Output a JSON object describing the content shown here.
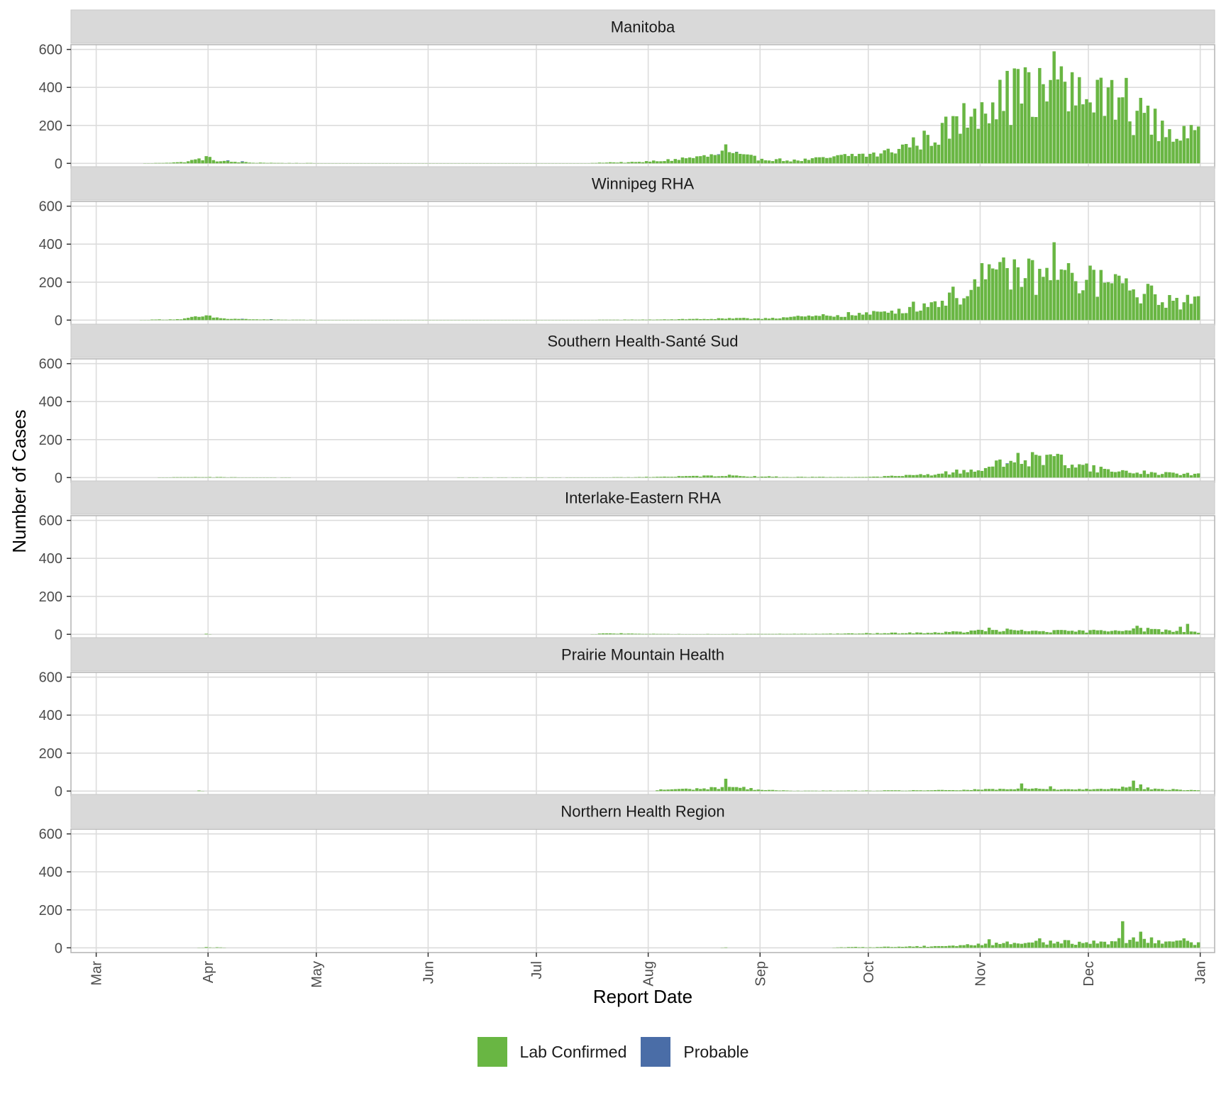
{
  "chart_data": {
    "type": "bar",
    "stacked": true,
    "facet_layout": "vertical",
    "x_axis": {
      "label": "Report Date",
      "ticks": [
        "Mar",
        "Apr",
        "May",
        "Jun",
        "Jul",
        "Aug",
        "Sep",
        "Oct",
        "Nov",
        "Dec",
        "Jan"
      ],
      "range": [
        "2020-02-23",
        "2021-01-05"
      ]
    },
    "y_axis": {
      "label": "Number of Cases",
      "ticks": [
        0,
        200,
        400,
        600
      ],
      "ylim": [
        -25,
        625
      ]
    },
    "grid": true,
    "legend": {
      "position": "bottom",
      "entries": [
        {
          "name": "Lab Confirmed",
          "color": "#69b643"
        },
        {
          "name": "Probable",
          "color": "#4a6da7"
        }
      ]
    },
    "series_names": [
      "Lab Confirmed",
      "Probable"
    ],
    "start_date": "2020-03-01",
    "panels": [
      {
        "title": "Manitoba",
        "anchors": [
          [
            "2020-03-12",
            0
          ],
          [
            "2020-03-17",
            2
          ],
          [
            "2020-03-24",
            6
          ],
          [
            "2020-03-27",
            15
          ],
          [
            "2020-03-31",
            30
          ],
          [
            "2020-04-04",
            12
          ],
          [
            "2020-04-12",
            4
          ],
          [
            "2020-04-20",
            2
          ],
          [
            "2020-05-01",
            1
          ],
          [
            "2020-06-15",
            1
          ],
          [
            "2020-07-15",
            1
          ],
          [
            "2020-07-20",
            5
          ],
          [
            "2020-07-28",
            6
          ],
          [
            "2020-08-05",
            15
          ],
          [
            "2020-08-12",
            30
          ],
          [
            "2020-08-18",
            40
          ],
          [
            "2020-08-22",
            60
          ],
          [
            "2020-08-26",
            40
          ],
          [
            "2020-09-01",
            25
          ],
          [
            "2020-09-10",
            15
          ],
          [
            "2020-09-20",
            30
          ],
          [
            "2020-09-26",
            45
          ],
          [
            "2020-10-04",
            50
          ],
          [
            "2020-10-10",
            90
          ],
          [
            "2020-10-18",
            140
          ],
          [
            "2020-10-26",
            220
          ],
          [
            "2020-11-01",
            350
          ],
          [
            "2020-11-08",
            360
          ],
          [
            "2020-11-15",
            380
          ],
          [
            "2020-11-22",
            390
          ],
          [
            "2020-11-28",
            340
          ],
          [
            "2020-12-05",
            340
          ],
          [
            "2020-12-12",
            280
          ],
          [
            "2020-12-19",
            210
          ],
          [
            "2020-12-24",
            160
          ],
          [
            "2020-12-31",
            140
          ]
        ],
        "spikes": [
          [
            "2020-08-22",
            100
          ],
          [
            "2020-11-06",
            440
          ],
          [
            "2020-11-10",
            500
          ],
          [
            "2020-11-14",
            480
          ],
          [
            "2020-11-21",
            590
          ],
          [
            "2020-11-24",
            430
          ],
          [
            "2020-11-26",
            480
          ],
          [
            "2020-12-03",
            440
          ],
          [
            "2020-12-06",
            400
          ],
          [
            "2020-12-11",
            450
          ],
          [
            "2020-12-15",
            345
          ],
          [
            "2020-12-30",
            175
          ]
        ],
        "probable": [
          [
            "2020-04-06",
            3
          ],
          [
            "2020-04-10",
            4
          ],
          [
            "2020-08-20",
            3
          ],
          [
            "2020-08-25",
            2
          ]
        ]
      },
      {
        "title": "Winnipeg RHA",
        "anchors": [
          [
            "2020-03-12",
            0
          ],
          [
            "2020-03-17",
            3
          ],
          [
            "2020-03-24",
            5
          ],
          [
            "2020-03-28",
            15
          ],
          [
            "2020-03-31",
            20
          ],
          [
            "2020-04-05",
            8
          ],
          [
            "2020-04-15",
            3
          ],
          [
            "2020-05-01",
            1
          ],
          [
            "2020-06-01",
            1
          ],
          [
            "2020-07-01",
            1
          ],
          [
            "2020-07-15",
            1
          ],
          [
            "2020-08-01",
            3
          ],
          [
            "2020-08-15",
            6
          ],
          [
            "2020-09-01",
            10
          ],
          [
            "2020-09-15",
            20
          ],
          [
            "2020-09-25",
            30
          ],
          [
            "2020-10-02",
            35
          ],
          [
            "2020-10-10",
            60
          ],
          [
            "2020-10-18",
            90
          ],
          [
            "2020-10-26",
            140
          ],
          [
            "2020-11-01",
            200
          ],
          [
            "2020-11-08",
            240
          ],
          [
            "2020-11-15",
            240
          ],
          [
            "2020-11-22",
            220
          ],
          [
            "2020-11-28",
            210
          ],
          [
            "2020-12-05",
            210
          ],
          [
            "2020-12-12",
            160
          ],
          [
            "2020-12-19",
            130
          ],
          [
            "2020-12-24",
            100
          ],
          [
            "2020-12-31",
            95
          ]
        ],
        "spikes": [
          [
            "2020-11-01",
            300
          ],
          [
            "2020-11-07",
            330
          ],
          [
            "2020-11-10",
            320
          ],
          [
            "2020-11-21",
            410
          ],
          [
            "2020-11-25",
            300
          ],
          [
            "2020-12-02",
            265
          ],
          [
            "2020-12-11",
            220
          ]
        ],
        "probable": [
          [
            "2020-04-10",
            2
          ],
          [
            "2020-04-18",
            2
          ]
        ]
      },
      {
        "title": "Southern Health-Santé Sud",
        "anchors": [
          [
            "2020-03-15",
            0
          ],
          [
            "2020-03-31",
            3
          ],
          [
            "2020-04-10",
            1
          ],
          [
            "2020-05-01",
            0
          ],
          [
            "2020-07-20",
            1
          ],
          [
            "2020-08-01",
            3
          ],
          [
            "2020-08-15",
            8
          ],
          [
            "2020-08-22",
            12
          ],
          [
            "2020-08-30",
            6
          ],
          [
            "2020-09-10",
            3
          ],
          [
            "2020-10-01",
            3
          ],
          [
            "2020-10-10",
            10
          ],
          [
            "2020-10-20",
            20
          ],
          [
            "2020-10-27",
            35
          ],
          [
            "2020-11-01",
            50
          ],
          [
            "2020-11-08",
            80
          ],
          [
            "2020-11-15",
            100
          ],
          [
            "2020-11-22",
            100
          ],
          [
            "2020-11-28",
            70
          ],
          [
            "2020-12-05",
            40
          ],
          [
            "2020-12-12",
            30
          ],
          [
            "2020-12-20",
            25
          ],
          [
            "2020-12-31",
            18
          ]
        ],
        "spikes": [
          [
            "2020-11-11",
            130
          ],
          [
            "2020-11-19",
            120
          ],
          [
            "2020-11-22",
            125
          ]
        ],
        "probable": [
          [
            "2020-11-08",
            3
          ]
        ]
      },
      {
        "title": "Interlake-Eastern RHA",
        "anchors": [
          [
            "2020-03-30",
            0
          ],
          [
            "2020-03-31",
            2
          ],
          [
            "2020-04-02",
            0
          ],
          [
            "2020-07-15",
            0
          ],
          [
            "2020-07-19",
            4
          ],
          [
            "2020-07-25",
            5
          ],
          [
            "2020-08-01",
            2
          ],
          [
            "2020-08-20",
            1
          ],
          [
            "2020-09-05",
            2
          ],
          [
            "2020-09-20",
            3
          ],
          [
            "2020-10-01",
            5
          ],
          [
            "2020-10-15",
            8
          ],
          [
            "2020-10-25",
            12
          ],
          [
            "2020-11-01",
            20
          ],
          [
            "2020-11-15",
            18
          ],
          [
            "2020-11-28",
            16
          ],
          [
            "2020-12-05",
            20
          ],
          [
            "2020-12-12",
            30
          ],
          [
            "2020-12-20",
            22
          ],
          [
            "2020-12-31",
            12
          ]
        ],
        "spikes": [
          [
            "2020-11-03",
            35
          ],
          [
            "2020-11-08",
            30
          ],
          [
            "2020-12-14",
            45
          ],
          [
            "2020-12-28",
            55
          ],
          [
            "2020-12-26",
            40
          ]
        ],
        "probable": []
      },
      {
        "title": "Prairie Mountain Health",
        "anchors": [
          [
            "2020-03-28",
            0
          ],
          [
            "2020-03-29",
            2
          ],
          [
            "2020-03-31",
            0
          ],
          [
            "2020-08-02",
            0
          ],
          [
            "2020-08-04",
            8
          ],
          [
            "2020-08-10",
            10
          ],
          [
            "2020-08-18",
            15
          ],
          [
            "2020-08-22",
            25
          ],
          [
            "2020-08-28",
            15
          ],
          [
            "2020-09-02",
            5
          ],
          [
            "2020-09-10",
            2
          ],
          [
            "2020-10-01",
            2
          ],
          [
            "2020-10-15",
            4
          ],
          [
            "2020-10-25",
            5
          ],
          [
            "2020-11-01",
            8
          ],
          [
            "2020-11-15",
            12
          ],
          [
            "2020-11-28",
            10
          ],
          [
            "2020-12-05",
            15
          ],
          [
            "2020-12-12",
            20
          ],
          [
            "2020-12-20",
            10
          ],
          [
            "2020-12-31",
            4
          ]
        ],
        "spikes": [
          [
            "2020-08-22",
            65
          ],
          [
            "2020-11-12",
            40
          ],
          [
            "2020-11-20",
            25
          ],
          [
            "2020-12-13",
            55
          ],
          [
            "2020-12-15",
            35
          ]
        ],
        "probable": []
      },
      {
        "title": "Northern Health Region",
        "anchors": [
          [
            "2020-03-28",
            0
          ],
          [
            "2020-03-31",
            3
          ],
          [
            "2020-04-04",
            2
          ],
          [
            "2020-04-06",
            0
          ],
          [
            "2020-08-20",
            0
          ],
          [
            "2020-08-22",
            2
          ],
          [
            "2020-08-23",
            0
          ],
          [
            "2020-09-20",
            0
          ],
          [
            "2020-09-25",
            4
          ],
          [
            "2020-10-01",
            3
          ],
          [
            "2020-10-15",
            8
          ],
          [
            "2020-10-25",
            12
          ],
          [
            "2020-11-01",
            20
          ],
          [
            "2020-11-08",
            25
          ],
          [
            "2020-11-15",
            30
          ],
          [
            "2020-11-22",
            30
          ],
          [
            "2020-11-28",
            28
          ],
          [
            "2020-12-05",
            30
          ],
          [
            "2020-12-10",
            40
          ],
          [
            "2020-12-15",
            45
          ],
          [
            "2020-12-20",
            40
          ],
          [
            "2020-12-25",
            30
          ],
          [
            "2020-12-31",
            25
          ]
        ],
        "spikes": [
          [
            "2020-11-03",
            45
          ],
          [
            "2020-11-17",
            50
          ],
          [
            "2020-12-10",
            140
          ],
          [
            "2020-12-13",
            55
          ],
          [
            "2020-12-15",
            85
          ],
          [
            "2020-12-18",
            55
          ],
          [
            "2020-12-27",
            50
          ]
        ],
        "probable": []
      }
    ]
  }
}
